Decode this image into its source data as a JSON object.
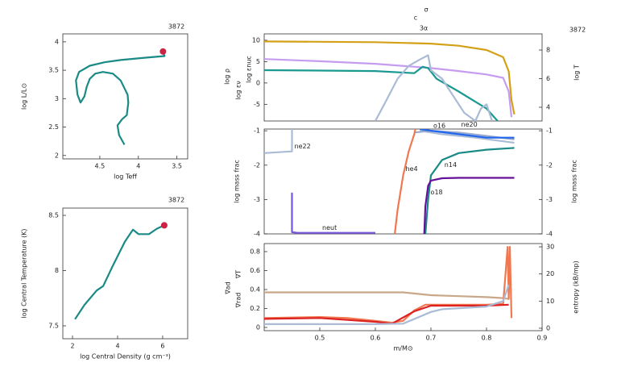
{
  "chart_data": [
    {
      "type": "line",
      "annotation": "3872",
      "xlabel": "log Teff",
      "ylabel": "log L/L⊙",
      "xlim": [
        4.98,
        3.36
      ],
      "xticks": [
        4.5,
        4,
        3.5
      ],
      "ylim": [
        1.94,
        4.14
      ],
      "yticks": [
        2,
        2.5,
        3,
        3.5,
        4
      ],
      "series": [
        {
          "color": "#1a8a86",
          "x": [
            4.18,
            4.25,
            4.27,
            4.21,
            4.15,
            4.13,
            4.14,
            4.23,
            4.33,
            4.46,
            4.56,
            4.63,
            4.67,
            4.7,
            4.75,
            4.79,
            4.81,
            4.77,
            4.63,
            4.44,
            4.23,
            3.92,
            3.66,
            3.68
          ],
          "values": [
            2.19,
            2.36,
            2.53,
            2.64,
            2.71,
            2.93,
            3.07,
            3.32,
            3.44,
            3.47,
            3.44,
            3.35,
            3.21,
            3.04,
            2.93,
            3.07,
            3.32,
            3.47,
            3.58,
            3.64,
            3.68,
            3.72,
            3.75,
            3.82
          ]
        }
      ],
      "marker": {
        "x": 3.68,
        "y": 3.83,
        "color": "#cc2244"
      }
    },
    {
      "type": "line",
      "annotation": "3872",
      "xlabel": "log Central Density (g cm⁻³)",
      "ylabel": "log Central Temperature (K)",
      "xlim": [
        1.57,
        7.11
      ],
      "xticks": [
        2,
        4,
        6
      ],
      "ylim": [
        7.383,
        8.566
      ],
      "yticks": [
        7.5,
        8,
        8.5
      ],
      "series": [
        {
          "color": "#1a8a86",
          "x": [
            2.11,
            2.53,
            3.07,
            3.36,
            3.78,
            4.32,
            4.68,
            4.93,
            5.39,
            5.75,
            6.07
          ],
          "values": [
            7.56,
            7.69,
            7.82,
            7.86,
            8.04,
            8.26,
            8.37,
            8.33,
            8.33,
            8.38,
            8.41
          ]
        }
      ],
      "marker": {
        "x": 6.07,
        "y": 8.41,
        "color": "#cc2244"
      }
    },
    {
      "type": "line",
      "title_lines": [
        "σ",
        "c",
        "3α"
      ],
      "annotation": "3872",
      "xlim": [
        0.4,
        0.9
      ],
      "ylim": [
        -8.9,
        11.5
      ],
      "yticks": [
        -5,
        0,
        5,
        10
      ],
      "y2lim": [
        3.04,
        9.13
      ],
      "y2ticks": [
        4,
        6,
        8
      ],
      "series": [
        {
          "name": "log ρ",
          "color": "#c59cf0",
          "x": [
            0.4,
            0.5,
            0.6,
            0.7,
            0.75,
            0.8,
            0.83,
            0.84,
            0.845
          ],
          "values": [
            5.6,
            5.1,
            4.5,
            3.5,
            2.8,
            2.0,
            1.2,
            -2,
            -8
          ]
        },
        {
          "name": "log εν",
          "color": "#1a9990",
          "x": [
            0.4,
            0.5,
            0.6,
            0.67,
            0.685,
            0.695,
            0.71,
            0.75,
            0.8,
            0.82
          ],
          "values": [
            3.0,
            2.9,
            2.8,
            2.3,
            3.8,
            3.5,
            1.0,
            -2,
            -6,
            -8.9
          ]
        },
        {
          "name": "log εnuc",
          "color": "#aabbd6",
          "x": [
            0.6,
            0.62,
            0.64,
            0.66,
            0.68,
            0.695,
            0.7,
            0.72,
            0.74,
            0.76,
            0.78,
            0.79,
            0.8,
            0.81
          ],
          "values": [
            -8.9,
            -4,
            1,
            4,
            5.5,
            6.5,
            3,
            1,
            -3,
            -7,
            -8.9,
            -6,
            -5,
            -8.9
          ]
        },
        {
          "name": "log T",
          "axis": "y2",
          "color": "#d4a017",
          "x": [
            0.4,
            0.5,
            0.6,
            0.7,
            0.75,
            0.8,
            0.83,
            0.84,
            0.845,
            0.85
          ],
          "values": [
            8.6,
            8.58,
            8.55,
            8.45,
            8.3,
            8.0,
            7.5,
            6.5,
            4.5,
            3.5
          ]
        }
      ]
    },
    {
      "type": "line",
      "ylabel": "log mass frac",
      "y2label": "log mass frac",
      "xlim": [
        0.4,
        0.9
      ],
      "ylim": [
        -4,
        -0.95
      ],
      "yticks": [
        -4,
        -3,
        -2,
        -1
      ],
      "y2lim": [
        -4,
        -0.95
      ],
      "y2ticks": [
        -4,
        -3,
        -2,
        -1
      ],
      "series": [
        {
          "name": "ne22",
          "color": "#aabbd6",
          "x": [
            0.4,
            0.45,
            0.45,
            null,
            0.68,
            0.72,
            0.78,
            0.85
          ],
          "values": [
            -1.65,
            -1.6,
            -0.95,
            null,
            -1.0,
            -1.1,
            -1.2,
            -1.35
          ]
        },
        {
          "name": "ne20",
          "color": "#99aacc",
          "x": [
            0.67,
            0.7,
            0.75,
            0.8,
            0.85
          ],
          "values": [
            -1.05,
            -1.0,
            -1.05,
            -1.15,
            -1.25
          ]
        },
        {
          "name": "o16",
          "color": "#2266ee",
          "x": [
            0.68,
            0.7,
            0.75,
            0.8,
            0.85
          ],
          "values": [
            -0.95,
            -1.0,
            -1.1,
            -1.2,
            -1.2
          ]
        },
        {
          "name": "n14",
          "color": "#1a8a86",
          "x": [
            0.69,
            0.695,
            0.7,
            0.72,
            0.75,
            0.8,
            0.85
          ],
          "values": [
            -4,
            -3,
            -2.3,
            -1.85,
            -1.65,
            -1.55,
            -1.5
          ]
        },
        {
          "name": "he4",
          "color": "#f07850",
          "x": [
            0.635,
            0.64,
            0.65,
            0.66,
            0.67,
            0.672
          ],
          "values": [
            -4,
            -3.3,
            -2.3,
            -1.6,
            -1.1,
            -0.95
          ]
        },
        {
          "name": "o18",
          "color": "#661199",
          "x": [
            0.688,
            0.69,
            0.695,
            0.7,
            0.72,
            0.75,
            0.8,
            0.85
          ],
          "values": [
            -4,
            -3.2,
            -2.6,
            -2.45,
            -2.38,
            -2.37,
            -2.37,
            -2.37
          ]
        },
        {
          "name": "neut",
          "color": "#7755dd",
          "x": [
            0.45,
            0.45,
            0.46,
            0.5,
            0.55,
            0.6
          ],
          "values": [
            -2.8,
            -3.95,
            -3.97,
            -3.97,
            -3.97,
            -3.97
          ]
        }
      ]
    },
    {
      "type": "line",
      "xlabel": "m/M⊙",
      "y2label": "entropy (kB/mp)",
      "xlim": [
        0.4,
        0.9
      ],
      "xticks": [
        0.5,
        0.6,
        0.7,
        0.8,
        0.9
      ],
      "ylim": [
        -0.034,
        0.885
      ],
      "yticks": [
        0,
        0.2,
        0.4,
        0.6,
        0.8
      ],
      "y2lim": [
        -0.9,
        31.2
      ],
      "y2ticks": [
        0,
        10,
        20,
        30
      ],
      "series": [
        {
          "name": "∇ad",
          "color": "#c8a888",
          "x": [
            0.4,
            0.5,
            0.6,
            0.65,
            0.7,
            0.75,
            0.8,
            0.83,
            0.84
          ],
          "values": [
            0.37,
            0.37,
            0.37,
            0.37,
            0.34,
            0.33,
            0.32,
            0.31,
            0.3
          ]
        },
        {
          "name": "∇rad",
          "color": "#f07850",
          "x": [
            0.4,
            0.5,
            0.55,
            0.6,
            0.63,
            0.65,
            0.67,
            0.69,
            0.7,
            0.75,
            0.8,
            0.83,
            0.838,
            0.84,
            0.842,
            0.845
          ],
          "values": [
            0.1,
            0.11,
            0.1,
            0.07,
            0.05,
            0.07,
            0.18,
            0.24,
            0.24,
            0.24,
            0.24,
            0.25,
            0.85,
            0.3,
            0.85,
            0.1
          ]
        },
        {
          "name": "∇T",
          "color": "#dd2222",
          "x": [
            0.4,
            0.5,
            0.6,
            0.63,
            0.67,
            0.7,
            0.8,
            0.84
          ],
          "values": [
            0.09,
            0.1,
            0.06,
            0.04,
            0.17,
            0.23,
            0.23,
            0.24
          ]
        },
        {
          "axis": "y2",
          "color": "#aabbd6",
          "x": [
            0.4,
            0.5,
            0.6,
            0.65,
            0.7,
            0.72,
            0.8,
            0.83,
            0.84
          ],
          "values": [
            1.5,
            1.5,
            1.5,
            1.7,
            6,
            7,
            8,
            10,
            16
          ]
        }
      ]
    }
  ]
}
